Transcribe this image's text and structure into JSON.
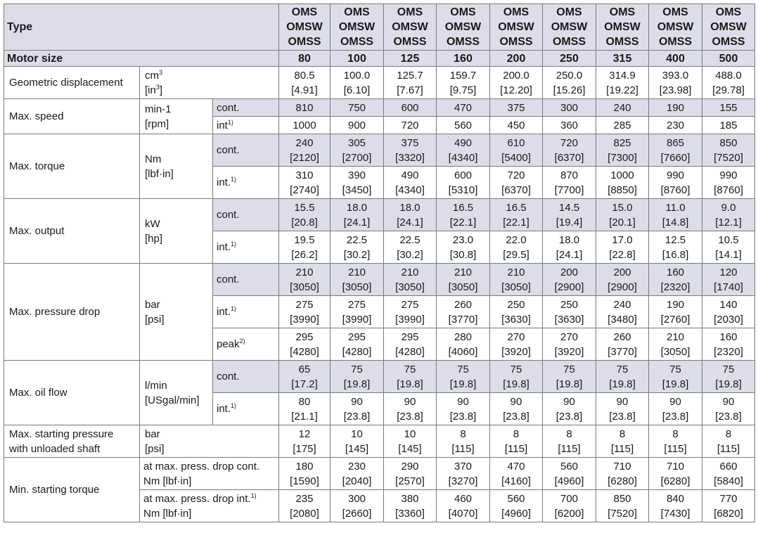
{
  "header": {
    "type_label": "Type",
    "models": [
      "OMS",
      "OMSW",
      "OMSS"
    ],
    "size_label": "Motor size",
    "sizes": [
      "80",
      "100",
      "125",
      "160",
      "200",
      "250",
      "315",
      "400",
      "500"
    ]
  },
  "rows": {
    "disp": {
      "label": "Geometric displacement",
      "unit_a": "cm",
      "unit_b": "[in",
      "sup3": "3",
      "close": "]",
      "values": [
        "80.5",
        "100.0",
        "125.7",
        "159.7",
        "200.0",
        "250.0",
        "314.9",
        "393.0",
        "488.0"
      ],
      "values2": [
        "[4.91]",
        "[6.10]",
        "[7.67]",
        "[9.75]",
        "[12.20]",
        "[15.26]",
        "[19.22]",
        "[23.98]",
        "[29.78]"
      ]
    },
    "speed": {
      "label": "Max. speed",
      "unit_a": "min-1",
      "unit_b": "[rpm]",
      "sub_cont": "cont.",
      "sub_int": "int",
      "cont": [
        "810",
        "750",
        "600",
        "470",
        "375",
        "300",
        "240",
        "190",
        "155"
      ],
      "int": [
        "1000",
        "900",
        "720",
        "560",
        "450",
        "360",
        "285",
        "230",
        "185"
      ]
    },
    "torque": {
      "label": "Max. torque",
      "unit_a": "Nm",
      "unit_b": "[lbf·in]",
      "sub_cont": "cont.",
      "sub_int": "int.",
      "cont": [
        "240",
        "305",
        "375",
        "490",
        "610",
        "720",
        "825",
        "865",
        "850"
      ],
      "cont2": [
        "[2120]",
        "[2700]",
        "[3320]",
        "[4340]",
        "[5400]",
        "[6370]",
        "[7300]",
        "[7660]",
        "[7520]"
      ],
      "int": [
        "310",
        "390",
        "490",
        "600",
        "720",
        "870",
        "1000",
        "990",
        "990"
      ],
      "int2": [
        "[2740]",
        "[3450]",
        "[4340]",
        "[5310]",
        "[6370]",
        "[7700]",
        "[8850]",
        "[8760]",
        "[8760]"
      ]
    },
    "output": {
      "label": "Max. output",
      "unit_a": "kW",
      "unit_b": "[hp]",
      "sub_cont": "cont.",
      "sub_int": "int.",
      "cont": [
        "15.5",
        "18.0",
        "18.0",
        "16.5",
        "16.5",
        "14.5",
        "15.0",
        "11.0",
        "9.0"
      ],
      "cont2": [
        "[20.8]",
        "[24.1]",
        "[24.1]",
        "[22.1]",
        "[22.1]",
        "[19.4]",
        "[20.1]",
        "[14.8]",
        "[12.1]"
      ],
      "int": [
        "19.5",
        "22.5",
        "22.5",
        "23.0",
        "22.0",
        "18.0",
        "17.0",
        "12.5",
        "10.5"
      ],
      "int2": [
        "[26.2]",
        "[30.2]",
        "[30.2]",
        "[30.8]",
        "[29.5]",
        "[24.1]",
        "[22.8]",
        "[16.8]",
        "[14.1]"
      ]
    },
    "pressure": {
      "label": "Max. pressure drop",
      "unit_a": "bar",
      "unit_b": "[psi]",
      "sub_cont": "cont.",
      "sub_int": "int.",
      "sub_peak": "peak",
      "cont": [
        "210",
        "210",
        "210",
        "210",
        "210",
        "200",
        "200",
        "160",
        "120"
      ],
      "cont2": [
        "[3050]",
        "[3050]",
        "[3050]",
        "[3050]",
        "[3050]",
        "[2900]",
        "[2900]",
        "[2320]",
        "[1740]"
      ],
      "int": [
        "275",
        "275",
        "275",
        "260",
        "250",
        "250",
        "240",
        "190",
        "140"
      ],
      "int2": [
        "[3990]",
        "[3990]",
        "[3990]",
        "[3770]",
        "[3630]",
        "[3630]",
        "[3480]",
        "[2760]",
        "[2030]"
      ],
      "peak": [
        "295",
        "295",
        "295",
        "280",
        "270",
        "270",
        "260",
        "210",
        "160"
      ],
      "peak2": [
        "[4280]",
        "[4280]",
        "[4280]",
        "[4060]",
        "[3920]",
        "[3920]",
        "[3770]",
        "[3050]",
        "[2320]"
      ]
    },
    "flow": {
      "label": "Max. oil flow",
      "unit_a": "l/min",
      "unit_b": "[USgal/min]",
      "sub_cont": "cont.",
      "sub_int": "int.",
      "cont": [
        "65",
        "75",
        "75",
        "75",
        "75",
        "75",
        "75",
        "75",
        "75"
      ],
      "cont2": [
        "[17.2]",
        "[19.8]",
        "[19.8]",
        "[19.8]",
        "[19.8]",
        "[19.8]",
        "[19.8]",
        "[19.8]",
        "[19.8]"
      ],
      "int": [
        "80",
        "90",
        "90",
        "90",
        "90",
        "90",
        "90",
        "90",
        "90"
      ],
      "int2": [
        "[21.1]",
        "[23.8]",
        "[23.8]",
        "[23.8]",
        "[23.8]",
        "[23.8]",
        "[23.8]",
        "[23.8]",
        "[23.8]"
      ]
    },
    "start_press": {
      "label_a": "Max. starting pressure",
      "label_b": "with unloaded shaft",
      "unit_a": "bar",
      "unit_b": "[psi]",
      "values": [
        "12",
        "10",
        "10",
        "8",
        "8",
        "8",
        "8",
        "8",
        "8"
      ],
      "values2": [
        "[175]",
        "[145]",
        "[145]",
        "[115]",
        "[115]",
        "[115]",
        "[115]",
        "[115]",
        "[115]"
      ]
    },
    "start_torque": {
      "label": "Min. starting torque",
      "sub_cont_a": "at max. press. drop cont.",
      "sub_cont_b": "Nm [lbf·in]",
      "sub_int_a": "at max. press. drop int.",
      "sub_int_b": "Nm [lbf·in]",
      "cont": [
        "180",
        "230",
        "290",
        "370",
        "470",
        "560",
        "710",
        "710",
        "660"
      ],
      "cont2": [
        "[1590]",
        "[2040]",
        "[2570]",
        "[3270]",
        "[4160]",
        "[4960]",
        "[6280]",
        "[6280]",
        "[5840]"
      ],
      "int": [
        "235",
        "300",
        "380",
        "460",
        "560",
        "700",
        "850",
        "840",
        "770"
      ],
      "int2": [
        "[2080]",
        "[2660]",
        "[3360]",
        "[4070]",
        "[4960]",
        "[6200]",
        "[7520]",
        "[7430]",
        "[6820]"
      ]
    }
  },
  "footnotes": {
    "one": "1)",
    "two": "2)"
  }
}
